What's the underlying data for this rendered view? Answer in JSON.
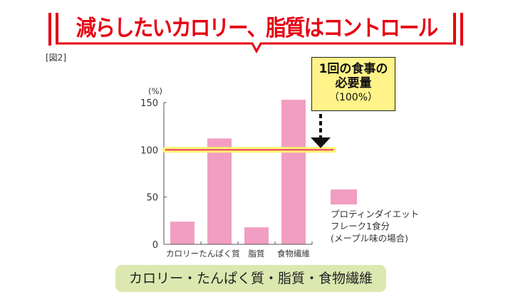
{
  "header": {
    "title": "減らしたいカロリー、脂質はコントロール",
    "figure_label": "[図2]"
  },
  "callout": {
    "line1": "1回の食事の",
    "line2": "必要量",
    "line3": "（100%）"
  },
  "caption": "カロリー・たんぱく質・脂質・食物繊維",
  "colors": {
    "bar": "#f19ec2",
    "title": "#e60012",
    "reference": "#e4007f",
    "highlight": "#fff36b"
  },
  "chart_data": {
    "type": "bar",
    "categories": [
      "カロリー",
      "たんぱく質",
      "脂質",
      "食物繊維"
    ],
    "values": [
      24,
      112,
      18,
      153
    ],
    "ylabel": "(%)",
    "ylim": [
      0,
      150
    ],
    "yticks": [
      "0",
      "50",
      "100",
      "150"
    ],
    "reference_line": 100,
    "legend": {
      "lines": [
        "プロティンダイエット",
        "フレーク1食分",
        "(メープル味の場合)"
      ],
      "placement": "right"
    }
  }
}
